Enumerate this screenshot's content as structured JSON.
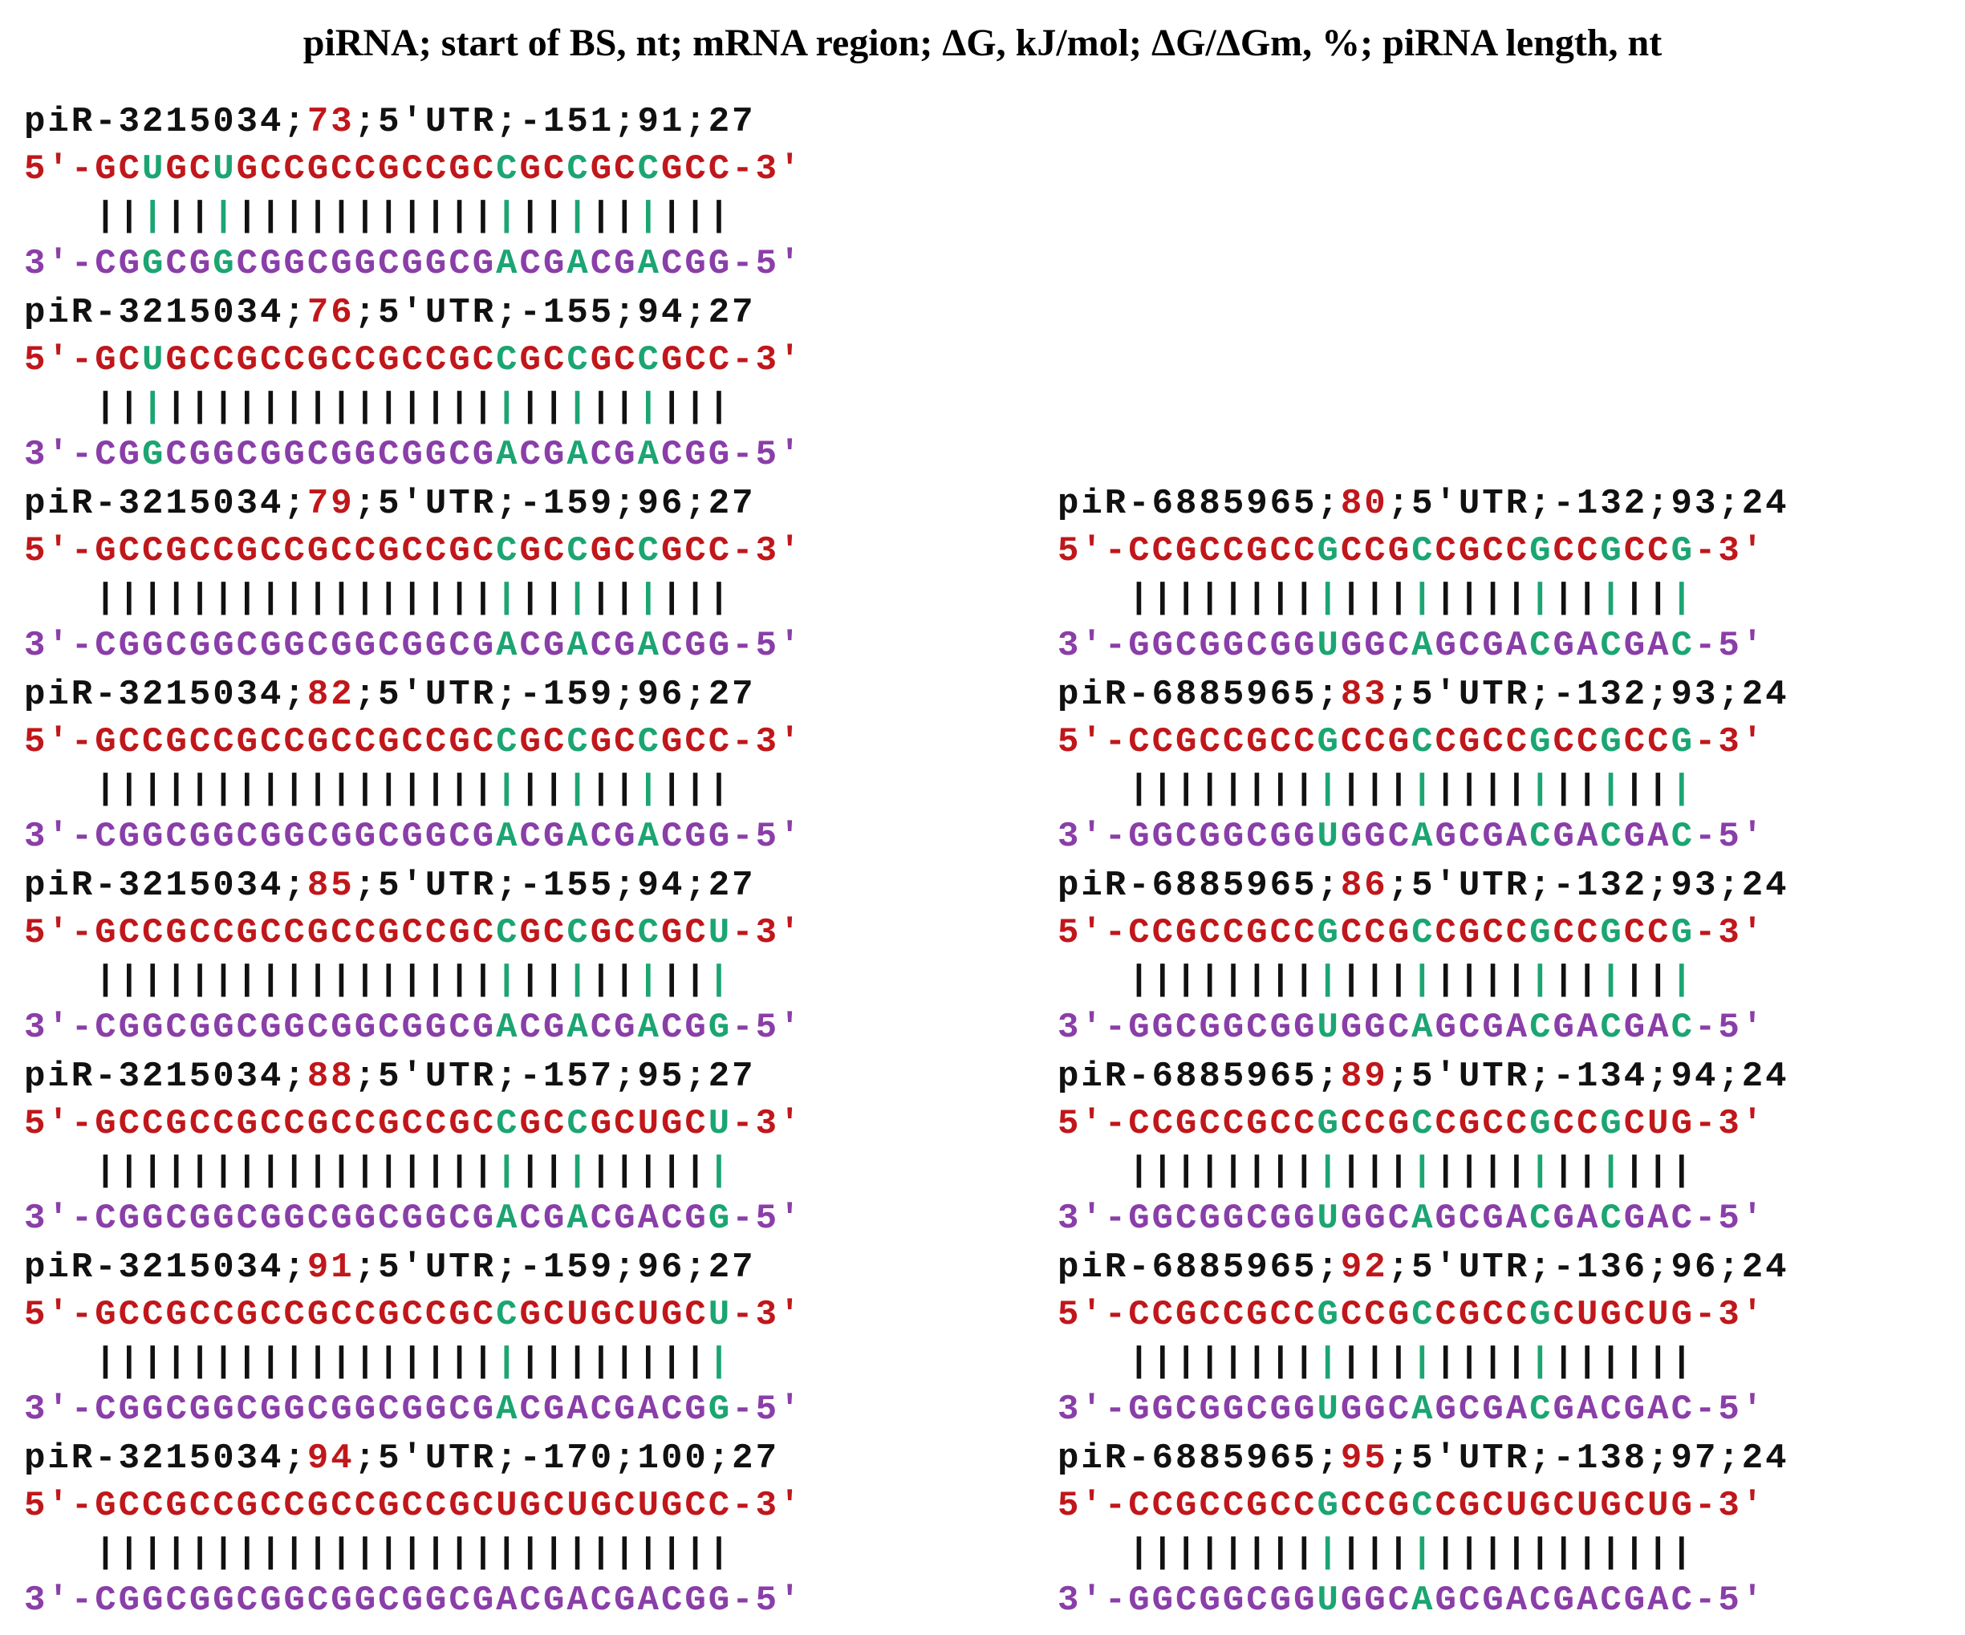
{
  "title": "piRNA; start of BS, nt; mRNA region; ΔG, kJ/mol; ΔG/ΔGm, %; piRNA length, nt",
  "colors": {
    "mrna": "#c0171b",
    "pirna": "#8a3ea8",
    "highlight": "#1ba572",
    "text": "#111111"
  },
  "left_column": [
    {
      "pirna": "piR-3215034",
      "bs": "73",
      "region": "5'UTR",
      "dg": "-151",
      "pct": "91",
      "len": "27",
      "mrna_prefix": "5'-",
      "mrna_seq": "GCUGCUGCCGCCGCCGCCGCCGCCGCC",
      "mrna_suffix": "-3'",
      "pirna_prefix": "3'-",
      "pirna_seq": "CGGCGGCGGCGGCGGCGACGACGACGG",
      "pirna_suffix": "-5'",
      "highlight_positions": [
        2,
        5,
        17,
        20,
        23
      ]
    },
    {
      "pirna": "piR-3215034",
      "bs": "76",
      "region": "5'UTR",
      "dg": "-155",
      "pct": "94",
      "len": "27",
      "mrna_prefix": "5'-",
      "mrna_seq": "GCUGCCGCCGCCGCCGCCGCCGCCGCC",
      "mrna_suffix": "-3'",
      "pirna_prefix": "3'-",
      "pirna_seq": "CGGCGGCGGCGGCGGCGACGACGACGG",
      "pirna_suffix": "-5'",
      "highlight_positions": [
        2,
        17,
        20,
        23
      ]
    },
    {
      "pirna": "piR-3215034",
      "bs": "79",
      "region": "5'UTR",
      "dg": "-159",
      "pct": "96",
      "len": "27",
      "mrna_prefix": "5'-",
      "mrna_seq": "GCCGCCGCCGCCGCCGCCGCCGCCGCC",
      "mrna_suffix": "-3'",
      "pirna_prefix": "3'-",
      "pirna_seq": "CGGCGGCGGCGGCGGCGACGACGACGG",
      "pirna_suffix": "-5'",
      "highlight_positions": [
        17,
        20,
        23
      ]
    },
    {
      "pirna": "piR-3215034",
      "bs": "82",
      "region": "5'UTR",
      "dg": "-159",
      "pct": "96",
      "len": "27",
      "mrna_prefix": "5'-",
      "mrna_seq": "GCCGCCGCCGCCGCCGCCGCCGCCGCC",
      "mrna_suffix": "-3'",
      "pirna_prefix": "3'-",
      "pirna_seq": "CGGCGGCGGCGGCGGCGACGACGACGG",
      "pirna_suffix": "-5'",
      "highlight_positions": [
        17,
        20,
        23
      ]
    },
    {
      "pirna": "piR-3215034",
      "bs": "85",
      "region": "5'UTR",
      "dg": "-155",
      "pct": "94",
      "len": "27",
      "mrna_prefix": "5'-",
      "mrna_seq": "GCCGCCGCCGCCGCCGCCGCCGCCGCU",
      "mrna_suffix": "-3'",
      "pirna_prefix": "3'-",
      "pirna_seq": "CGGCGGCGGCGGCGGCGACGACGACGG",
      "pirna_suffix": "-5'",
      "highlight_positions": [
        17,
        20,
        23,
        26
      ]
    },
    {
      "pirna": "piR-3215034",
      "bs": "88",
      "region": "5'UTR",
      "dg": "-157",
      "pct": "95",
      "len": "27",
      "mrna_prefix": "5'-",
      "mrna_seq": "GCCGCCGCCGCCGCCGCCGCCGCUGCU",
      "mrna_suffix": "-3'",
      "pirna_prefix": "3'-",
      "pirna_seq": "CGGCGGCGGCGGCGGCGACGACGACGG",
      "pirna_suffix": "-5'",
      "highlight_positions": [
        17,
        20,
        26
      ]
    },
    {
      "pirna": "piR-3215034",
      "bs": "91",
      "region": "5'UTR",
      "dg": "-159",
      "pct": "96",
      "len": "27",
      "mrna_prefix": "5'-",
      "mrna_seq": "GCCGCCGCCGCCGCCGCCGCUGCUGCU",
      "mrna_suffix": "-3'",
      "pirna_prefix": "3'-",
      "pirna_seq": "CGGCGGCGGCGGCGGCGACGACGACGG",
      "pirna_suffix": "-5'",
      "highlight_positions": [
        17,
        26
      ]
    },
    {
      "pirna": "piR-3215034",
      "bs": "94",
      "region": "5'UTR",
      "dg": "-170",
      "pct": "100",
      "len": "27",
      "mrna_prefix": "5'-",
      "mrna_seq": "GCCGCCGCCGCCGCCGCUGCUGCUGCC",
      "mrna_suffix": "-3'",
      "pirna_prefix": "3'-",
      "pirna_seq": "CGGCGGCGGCGGCGGCGACGACGACGG",
      "pirna_suffix": "-5'",
      "highlight_positions": []
    }
  ],
  "right_column": [
    {
      "pirna": "piR-6885965",
      "bs": "80",
      "region": "5'UTR",
      "dg": "-132",
      "pct": "93",
      "len": "24",
      "mrna_prefix": "5'-",
      "mrna_seq": "CCGCCGCCGCCGCCGCCGCCGCCG",
      "mrna_suffix": "-3'",
      "pirna_prefix": "3'-",
      "pirna_seq": "GGCGGCGGUGGCAGCGACGACGAC",
      "pirna_suffix": "-5'",
      "highlight_positions": [
        8,
        12,
        17,
        20,
        23
      ]
    },
    {
      "pirna": "piR-6885965",
      "bs": "83",
      "region": "5'UTR",
      "dg": "-132",
      "pct": "93",
      "len": "24",
      "mrna_prefix": "5'-",
      "mrna_seq": "CCGCCGCCGCCGCCGCCGCCGCCG",
      "mrna_suffix": "-3'",
      "pirna_prefix": "3'-",
      "pirna_seq": "GGCGGCGGUGGCAGCGACGACGAC",
      "pirna_suffix": "-5'",
      "highlight_positions": [
        8,
        12,
        17,
        20,
        23
      ]
    },
    {
      "pirna": "piR-6885965",
      "bs": "86",
      "region": "5'UTR",
      "dg": "-132",
      "pct": "93",
      "len": "24",
      "mrna_prefix": "5'-",
      "mrna_seq": "CCGCCGCCGCCGCCGCCGCCGCCG",
      "mrna_suffix": "-3'",
      "pirna_prefix": "3'-",
      "pirna_seq": "GGCGGCGGUGGCAGCGACGACGAC",
      "pirna_suffix": "-5'",
      "highlight_positions": [
        8,
        12,
        17,
        20,
        23
      ]
    },
    {
      "pirna": "piR-6885965",
      "bs": "89",
      "region": "5'UTR",
      "dg": "-134",
      "pct": "94",
      "len": "24",
      "mrna_prefix": "5'-",
      "mrna_seq": "CCGCCGCCGCCGCCGCCGCCGCUG",
      "mrna_suffix": "-3'",
      "pirna_prefix": "3'-",
      "pirna_seq": "GGCGGCGGUGGCAGCGACGACGAC",
      "pirna_suffix": "-5'",
      "highlight_positions": [
        8,
        12,
        17,
        20
      ]
    },
    {
      "pirna": "piR-6885965",
      "bs": "92",
      "region": "5'UTR",
      "dg": "-136",
      "pct": "96",
      "len": "24",
      "mrna_prefix": "5'-",
      "mrna_seq": "CCGCCGCCGCCGCCGCCGCUGCUG",
      "mrna_suffix": "-3'",
      "pirna_prefix": "3'-",
      "pirna_seq": "GGCGGCGGUGGCAGCGACGACGAC",
      "pirna_suffix": "-5'",
      "highlight_positions": [
        8,
        12,
        17
      ]
    },
    {
      "pirna": "piR-6885965",
      "bs": "95",
      "region": "5'UTR",
      "dg": "-138",
      "pct": "97",
      "len": "24",
      "mrna_prefix": "5'-",
      "mrna_seq": "CCGCCGCCGCCGCCGCUGCUGCUG",
      "mrna_suffix": "-3'",
      "pirna_prefix": "3'-",
      "pirna_seq": "GGCGGCGGUGGCAGCGACGACGAC",
      "pirna_suffix": "-5'",
      "highlight_positions": [
        8,
        12
      ]
    }
  ]
}
